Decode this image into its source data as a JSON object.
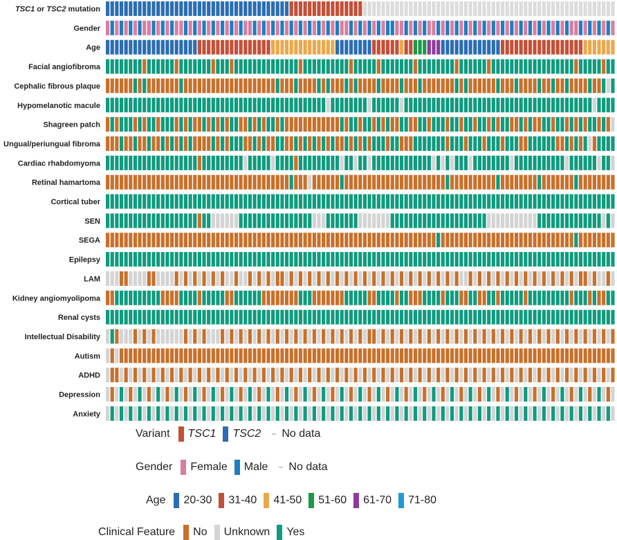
{
  "chart_data": {
    "type": "heatmap",
    "title": "",
    "rows": [
      {
        "label": "mutation",
        "label_html_parts": [
          [
            "TSC1",
            true
          ],
          [
            " or ",
            false
          ],
          [
            "TSC2",
            true
          ],
          [
            " mutation",
            false
          ]
        ],
        "kind": "variant"
      },
      {
        "label": "Gender",
        "kind": "gender"
      },
      {
        "label": "Age",
        "kind": "age"
      },
      {
        "label": "Facial angiofibroma",
        "kind": "clinical"
      },
      {
        "label": "Cephalic fibrous plaque",
        "kind": "clinical"
      },
      {
        "label": "Hypomelanotic macule",
        "kind": "clinical"
      },
      {
        "label": "Shagreen patch",
        "kind": "clinical"
      },
      {
        "label": "Ungual/periungual fibroma",
        "kind": "clinical"
      },
      {
        "label": "Cardiac rhabdomyoma",
        "kind": "clinical"
      },
      {
        "label": "Retinal hamartoma",
        "kind": "clinical"
      },
      {
        "label": "Cortical tuber",
        "kind": "clinical"
      },
      {
        "label": "SEN",
        "kind": "clinical"
      },
      {
        "label": "SEGA",
        "kind": "clinical"
      },
      {
        "label": "Epilepsy",
        "kind": "clinical"
      },
      {
        "label": "LAM",
        "kind": "clinical"
      },
      {
        "label": "Kidney angiomyolipoma",
        "kind": "clinical"
      },
      {
        "label": "Renal cysts",
        "kind": "clinical"
      },
      {
        "label": "Intellectual Disability",
        "kind": "clinical"
      },
      {
        "label": "Autism",
        "kind": "clinical"
      },
      {
        "label": "ADHD",
        "kind": "clinical"
      },
      {
        "label": "Depression",
        "kind": "clinical"
      },
      {
        "label": "Anxiety",
        "kind": "clinical"
      }
    ],
    "columns": 111,
    "variant_row": "40 TSC2 | 16 TSC1 | 55 no data",
    "cells": [
      "2222222222222222222222222222222222222222111111111111111100000000000000000000000000000000000000000000000000000000",
      "1212121211212121121212121212121121212121212121212121121212121221121212112121212121212121212121212121211212121210",
      "1111111111111111111122222222222222223333333333333311111111222222322444555111111111111122222222222222222233333333",
      "2222222202222220222222202220222222222222220222222222202222202222222022222222022222202222222222222222220222220222",
      "0000002020000000200000000000000000000200020000202000202000020000200020000000202000000200020000200200200002002120",
      "2222222222222222222222222222222222222222222222221222222221222222122222222222222222222222222222222222222222122222",
      "0202220202202220202002020202200202022020000000000002022022020200220022022202202202202022002020022022020202202010",
      "0002002002002020202000020202220020200220020202020200202020222022000222222202220222022202220022222200202021022220",
      "2222222222222222222202222222221222221222202222222221221221222222222222212121222122222222122222222222122222212211",
      "0000000000000000000000000000000000000000200010000002000000000000000000000020000000000200000000200000002000000000",
      "2222222222222222222222222222222222222222222222222222222222222222222222222222222222222222222222222222222222222222",
      "2222222222222222222202211111122222222222222221112222222111111122222222222222222222211111111111222222222222221212",
      "0000000000000000000000000000000000000000000000000000000000000000000000002000000000000000000000000000002000000002",
      "2222222222222222222222222222222222222222222222222222222222222222222222222222222222222222222222222222222222222222",
      "1110011110011110101010101011011010101001010101010101010101010101010101010101011010101010101010101010101001011011",
      "0022222222220000222202222200222222000000002220000000222220022220220002222022200220022022222022222222202220200220",
      "2222222222222222222222222222222222222222222222222222222222222222222222222222222222222222222222222222222222222222",
      "1201110101011111101010111010101010101010101010101010101010010101010101010101010101010101010101010101010101010101",
      "1010000000000000000000000000000000000000000000000000000000000000000000000000000000000000000000000000000000000000",
      "1001010101010101010101010101010101010101010101010101010101010101010101010101010101010101010101010101010101010101",
      "1012101210121012101210121012101210121012101210121012101210121012101210121012101210121012101210121012101210121012",
      "1212121212121212121212121212121212121212121212121212121212121212121212121212121212121212121212121212121212121212"
    ],
    "legends": [
      {
        "title": "Variant",
        "items": [
          {
            "label": "TSC1",
            "color": "#c44f37",
            "italic": true
          },
          {
            "label": "TSC2",
            "color": "#2a6db3",
            "italic": true
          },
          {
            "label": "No data",
            "color": "#cccccc",
            "dash": true
          }
        ]
      },
      {
        "title": "Gender",
        "items": [
          {
            "label": "Female",
            "color": "#d97ea1"
          },
          {
            "label": "Male",
            "color": "#1d7ec0"
          },
          {
            "label": "No data",
            "color": "#cccccc",
            "dash": true
          }
        ]
      },
      {
        "title": "Age",
        "items": [
          {
            "label": "20-30",
            "color": "#2a6db3"
          },
          {
            "label": "31-40",
            "color": "#c44f37"
          },
          {
            "label": "41-50",
            "color": "#eba84b"
          },
          {
            "label": "51-60",
            "color": "#1a9a48"
          },
          {
            "label": "61-70",
            "color": "#8e3a9a"
          },
          {
            "label": "71-80",
            "color": "#1f9ad6"
          }
        ]
      },
      {
        "title": "Clinical Feature",
        "items": [
          {
            "label": "No",
            "color": "#c8702a"
          },
          {
            "label": "Unknown",
            "color": "#d4d4d4"
          },
          {
            "label": "Yes",
            "color": "#0f9b7e"
          }
        ]
      }
    ]
  },
  "colors": {
    "tsc1": "#c44f37",
    "tsc2": "#2a6db3",
    "nodata": "#dcdcdc",
    "female": "#d97ea1",
    "male": "#1d7ec0",
    "age_20_30": "#2a6db3",
    "age_31_40": "#c44f37",
    "age_41_50": "#eba84b",
    "age_51_60": "#1a9a48",
    "age_61_70": "#8e3a9a",
    "age_71_80": "#1f9ad6",
    "no": "#c8702a",
    "unknown": "#d4d4d4",
    "yes": "#0f9b7e"
  }
}
